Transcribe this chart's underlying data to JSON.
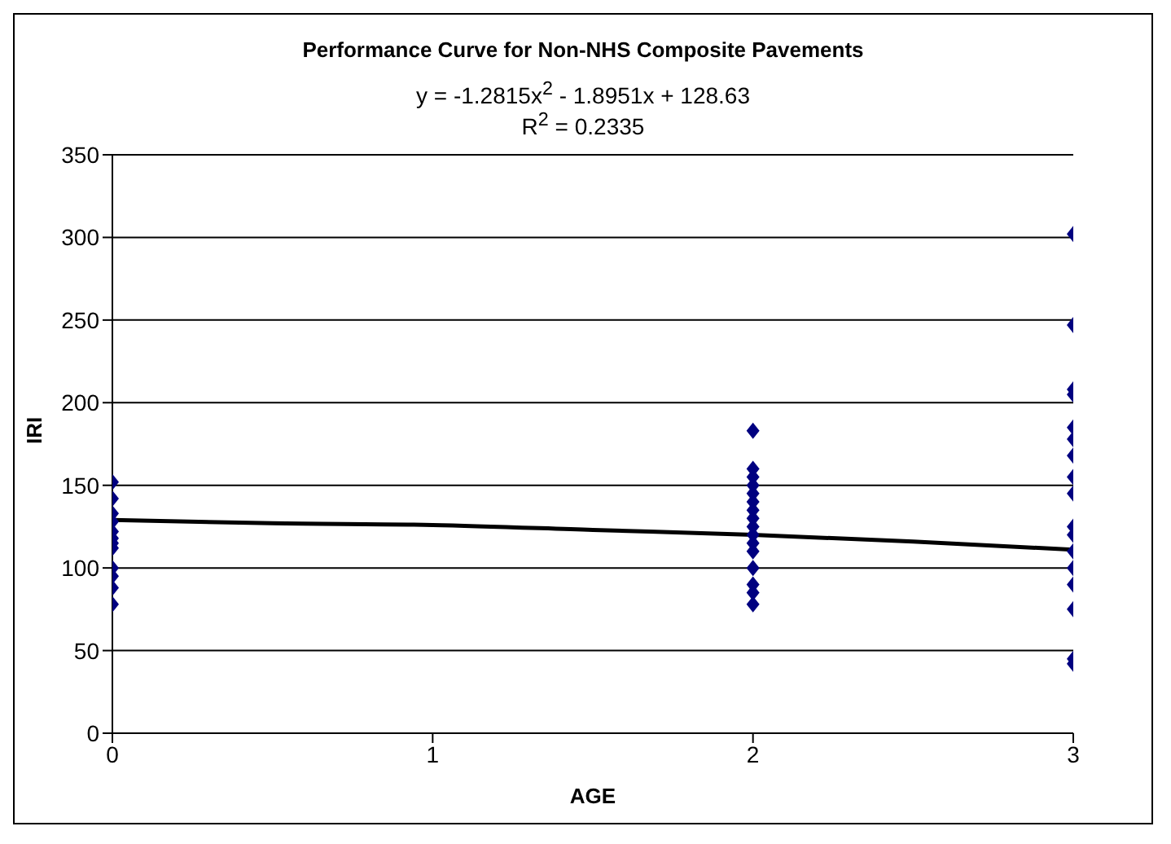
{
  "chart_data": {
    "type": "scatter",
    "title": "Performance Curve for Non-NHS Composite Pavements",
    "annotations": [
      "y = -1.2815x$^{2}$ - 1.8951x + 128.63",
      "R$^{2}$ = 0.2335"
    ],
    "xlabel": "AGE",
    "ylabel": "IRI",
    "xlim": [
      0,
      3
    ],
    "xticks": [
      0,
      1,
      2,
      3
    ],
    "ylim": [
      0,
      350
    ],
    "yticks": [
      0,
      50,
      100,
      150,
      200,
      250,
      300,
      350
    ],
    "grid": "y",
    "marker": "diamond",
    "series": [
      {
        "color": "#000080",
        "x": [
          0,
          0,
          0,
          0,
          0,
          0,
          0,
          0,
          0,
          0,
          0,
          0,
          2,
          2,
          2,
          2,
          2,
          2,
          2,
          2,
          2,
          2,
          2,
          2,
          2,
          2,
          2,
          2,
          3,
          3,
          3,
          3,
          3,
          3,
          3,
          3,
          3,
          3,
          3,
          3,
          3,
          3,
          3,
          3,
          3
        ],
        "values": [
          152,
          142,
          133,
          128,
          122,
          118,
          115,
          112,
          100,
          95,
          88,
          78,
          183,
          160,
          155,
          150,
          145,
          140,
          135,
          130,
          125,
          120,
          115,
          110,
          100,
          90,
          85,
          78,
          302,
          247,
          208,
          205,
          185,
          178,
          168,
          155,
          145,
          125,
          120,
          110,
          100,
          90,
          75,
          45,
          42
        ]
      },
      {
        "type": "line",
        "color": "#000000",
        "marker": "none",
        "x": [
          0,
          0.5,
          1,
          1.5,
          2,
          2.5,
          3
        ],
        "values": [
          129,
          127,
          126,
          123,
          120,
          116,
          111
        ]
      }
    ]
  }
}
